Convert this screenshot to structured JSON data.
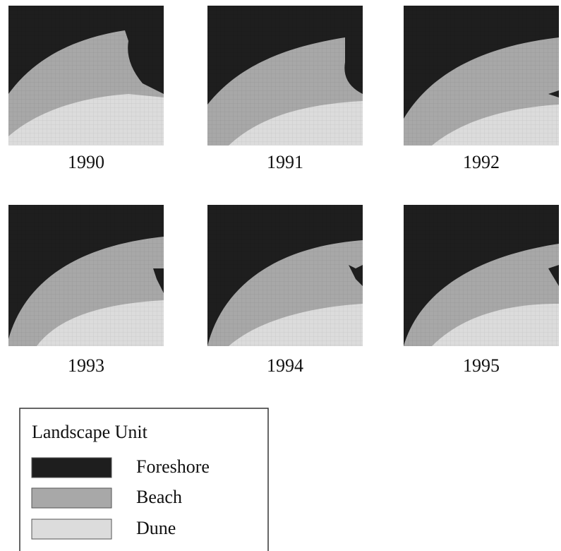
{
  "panels": [
    {
      "label": "1990"
    },
    {
      "label": "1991"
    },
    {
      "label": "1992"
    },
    {
      "label": "1993"
    },
    {
      "label": "1994"
    },
    {
      "label": "1995"
    }
  ],
  "legend": {
    "title": "Landscape Unit",
    "items": [
      {
        "label": "Foreshore",
        "color": "#1e1e1e"
      },
      {
        "label": "Beach",
        "color": "#a8a8a8"
      },
      {
        "label": "Dune",
        "color": "#dcdcdc"
      }
    ]
  }
}
